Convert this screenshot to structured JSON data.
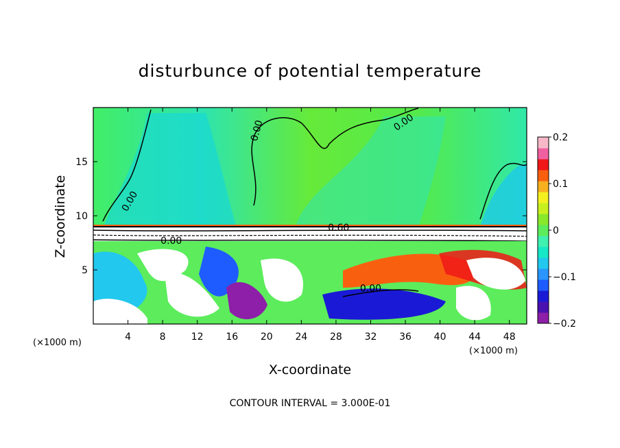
{
  "chart_data": {
    "type": "heatmap",
    "title": "disturbunce of potential temperature",
    "xlabel": "X-coordinate",
    "ylabel": "Z-coordinate",
    "x_unit_left": "(×1000 m)",
    "x_unit_right": "(×1000 m)",
    "xlim": [
      0,
      50
    ],
    "ylim": [
      0,
      20
    ],
    "x_ticks": [
      "4",
      "8",
      "12",
      "16",
      "20",
      "24",
      "28",
      "32",
      "36",
      "40",
      "44",
      "48"
    ],
    "x_tick_values": [
      4,
      8,
      12,
      16,
      20,
      24,
      28,
      32,
      36,
      40,
      44,
      48
    ],
    "y_ticks": [
      "5",
      "10",
      "15"
    ],
    "y_tick_values": [
      5,
      10,
      15
    ],
    "colorbar": {
      "range": [
        -0.2,
        0.2
      ],
      "tick_labels": [
        "0.2",
        "0.1",
        "0",
        "−0.1",
        "−0.2"
      ],
      "tick_values": [
        0.2,
        0.1,
        0,
        -0.1,
        -0.2
      ],
      "colors": [
        "#8e1fa8",
        "#4a12b0",
        "#1a1ad6",
        "#1e5cff",
        "#2a95ff",
        "#22c8ee",
        "#16e8c8",
        "#3ff0b0",
        "#5cec5c",
        "#88e82a",
        "#c8f020",
        "#f4f020",
        "#f8b020",
        "#f86010",
        "#f01818",
        "#f060a0",
        "#f8b8c8"
      ]
    },
    "contour_labels": [
      {
        "text": "0.00",
        "x": 19.2,
        "y": 17.8,
        "angle": -75
      },
      {
        "text": "0.00",
        "x": 36.0,
        "y": 18.4,
        "angle": -35
      },
      {
        "text": "0.00",
        "x": 4.5,
        "y": 11.2,
        "angle": -60
      },
      {
        "text": "0.60",
        "x": 28.3,
        "y": 8.6,
        "angle": 0
      },
      {
        "text": "0.00",
        "x": 9.0,
        "y": 7.4,
        "angle": 0
      },
      {
        "text": "0.00",
        "x": 32.0,
        "y": 3.0,
        "angle": 0
      }
    ],
    "contour_interval": "CONTOUR INTERVAL = 3.000E-01",
    "grid": false,
    "legend": "right"
  }
}
